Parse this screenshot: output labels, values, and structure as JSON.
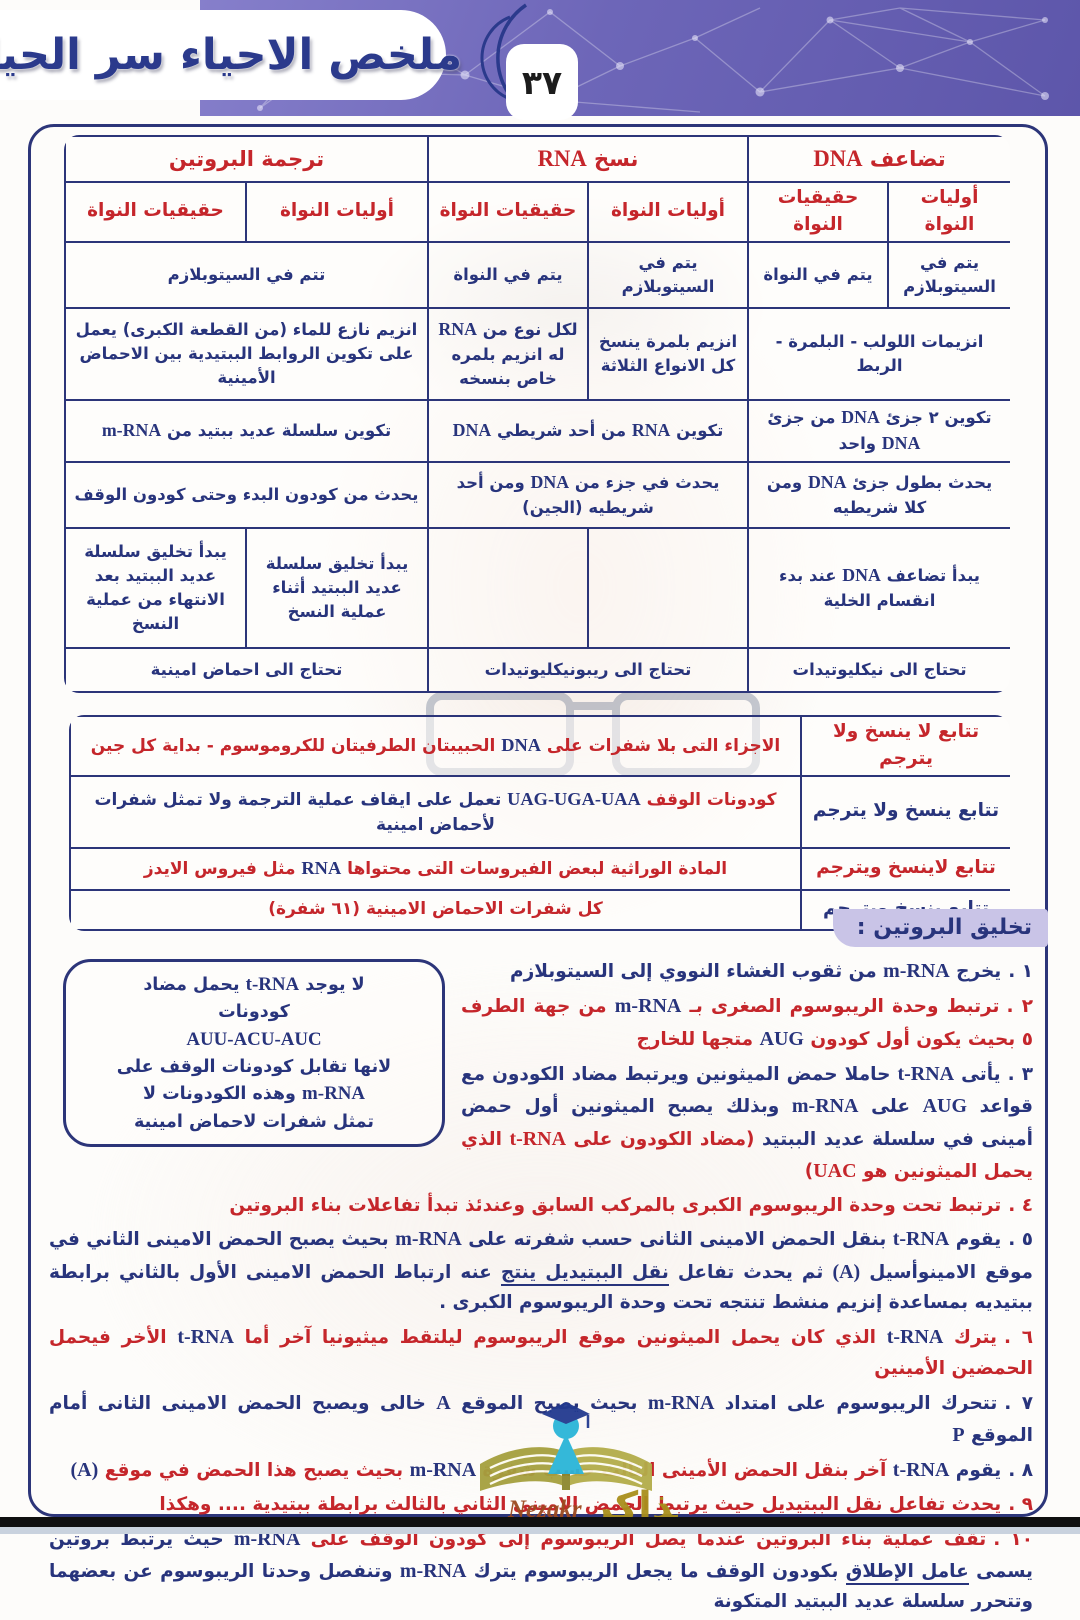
{
  "header": {
    "title": "ملخص الاحياء سر الحياة",
    "page_number": "٣٧"
  },
  "comparison_table": {
    "group_headers": {
      "dna": [
        {
          "t": "تضاعف ",
          "s": "r"
        },
        {
          "t": "DNA",
          "s": "rl"
        }
      ],
      "rna": [
        {
          "t": "نسخ ",
          "s": "r"
        },
        {
          "t": "RNA",
          "s": "rl"
        }
      ],
      "translation": [
        {
          "t": "ترجمة البروتين",
          "s": "r"
        }
      ]
    },
    "sub_headers": {
      "prokaryotes": [
        {
          "t": "أوليات النواة",
          "s": "r"
        }
      ],
      "eukaryotes": [
        {
          "t": "حقيقيات النواة",
          "s": "r"
        }
      ]
    },
    "rows": {
      "location": {
        "dna_prok": [
          {
            "t": "يتم في السيتوبلازم",
            "s": "n"
          }
        ],
        "dna_euk": [
          {
            "t": "يتم في النواة",
            "s": "n"
          }
        ],
        "rna_prok": [
          {
            "t": "يتم في السيتوبلازم",
            "s": "n"
          }
        ],
        "rna_euk": [
          {
            "t": "يتم في النواة",
            "s": "n"
          }
        ],
        "trans": [
          {
            "t": "تتم في السيتوبلازم",
            "s": "n"
          }
        ]
      },
      "enzymes": {
        "dna": [
          {
            "t": "انزيمات اللولب - البلمرة - الربط",
            "s": "n"
          }
        ],
        "rna_prok": [
          {
            "t": "انزيم بلمرة ينسخ كل الانواع الثلاثة",
            "s": "n"
          }
        ],
        "rna_euk": [
          {
            "t": "لكل نوع من ",
            "s": "n"
          },
          {
            "t": "RNA",
            "s": "nl"
          },
          {
            "t": " له انزيم بلمره خاص بنسخه",
            "s": "n"
          }
        ],
        "trans": [
          {
            "t": "انزيم نازع للماء (من القطعة الكبرى) يعمل على تكوين الروابط الببتيدية بين الاحماض الأمينية",
            "s": "n"
          }
        ]
      },
      "product": {
        "dna": [
          {
            "t": "تكوين ٢ جزئ ",
            "s": "n"
          },
          {
            "t": "DNA",
            "s": "nl"
          },
          {
            "t": " من جزئ ",
            "s": "n"
          },
          {
            "t": "DNA",
            "s": "nl"
          },
          {
            "t": " واحد",
            "s": "n"
          }
        ],
        "rna": [
          {
            "t": "تكوين ",
            "s": "n"
          },
          {
            "t": "RNA",
            "s": "nl"
          },
          {
            "t": " من أحد شريطي ",
            "s": "n"
          },
          {
            "t": "DNA",
            "s": "nl"
          }
        ],
        "trans": [
          {
            "t": "تكوين سلسلة عديد ببتيد من ",
            "s": "n"
          },
          {
            "t": "m-RNA",
            "s": "nl"
          }
        ]
      },
      "extent": {
        "dna": [
          {
            "t": "يحدث بطول جزئ ",
            "s": "n"
          },
          {
            "t": "DNA",
            "s": "nl"
          },
          {
            "t": " ومن كلا شريطيه",
            "s": "n"
          }
        ],
        "rna": [
          {
            "t": "يحدث في جزء من ",
            "s": "n"
          },
          {
            "t": "DNA",
            "s": "nl"
          },
          {
            "t": " ومن أحد شريطيه (الجين)",
            "s": "n"
          }
        ],
        "trans": [
          {
            "t": "يحدث من كودون البدء وحتى كودون الوقف",
            "s": "n"
          }
        ]
      },
      "timing": {
        "dna": [
          {
            "t": "يبدأ تضاعف ",
            "s": "n"
          },
          {
            "t": "DNA",
            "s": "nl"
          },
          {
            "t": " عند بدء انقسام الخلية",
            "s": "n"
          }
        ],
        "rna_prok": [],
        "rna_euk": [],
        "trans_prok": [
          {
            "t": "يبدأ تخليق سلسلة عديد الببتيد أثناء عملية النسخ",
            "s": "n"
          }
        ],
        "trans_euk": [
          {
            "t": "يبدأ تخليق سلسلة عديد الببتيد بعد الانتهاء من عملية النسخ",
            "s": "n"
          }
        ]
      },
      "needs": {
        "dna": [
          {
            "t": "تحتاج الى نيكليوتيدات",
            "s": "n"
          }
        ],
        "rna": [
          {
            "t": "تحتاج الى ريبونيكليوتيدات",
            "s": "n"
          }
        ],
        "trans": [
          {
            "t": "تحتاج الى احماض امينية",
            "s": "n"
          }
        ]
      }
    }
  },
  "sequence_table": {
    "rows": [
      {
        "label": [
          {
            "t": "تتابع لا ينسخ ولا يترجم",
            "s": "r"
          }
        ],
        "content": [
          {
            "t": "الاجزاء التى بلا شفرات على ",
            "s": "r"
          },
          {
            "t": "DNA",
            "s": "nl"
          },
          {
            "t": " الحبيبتان الطرفيتان للكروموسوم - بداية كل جين",
            "s": "r"
          }
        ]
      },
      {
        "label": [
          {
            "t": "تتابع ينسخ ولا يترجم",
            "s": "n"
          }
        ],
        "content": [
          {
            "t": "كودونات الوقف ",
            "s": "r"
          },
          {
            "t": "UAG-UGA-UAA",
            "s": "nl"
          },
          {
            "t": " تعمل على ايقاف عملية الترجمة ولا تمثل شفرات لأحماض امينية",
            "s": "n"
          }
        ]
      },
      {
        "label": [
          {
            "t": "تتابع لاينسخ ويترجم",
            "s": "r"
          }
        ],
        "content": [
          {
            "t": "المادة الوراثية لبعض الفيروسات التى محتواها ",
            "s": "r"
          },
          {
            "t": "RNA",
            "s": "nl"
          },
          {
            "t": " مثل فيروس الايدز",
            "s": "r"
          }
        ]
      },
      {
        "label": [
          {
            "t": "تتابع ينسخ ويترجم",
            "s": "n"
          }
        ],
        "content": [
          {
            "t": "كل شفرات الاحماض الامينية (٦١ شفرة)",
            "s": "r"
          }
        ]
      }
    ]
  },
  "protein": {
    "heading": "تخليق البروتين :",
    "side_box": {
      "lines": [
        [
          {
            "t": "لا يوجد ",
            "s": "n"
          },
          {
            "t": "t-RNA",
            "s": "nl"
          },
          {
            "t": " يحمل مضاد",
            "s": "n"
          }
        ],
        [
          {
            "t": "كودونات",
            "s": "n"
          }
        ],
        [
          {
            "t": "AUU-ACU-AUC",
            "s": "nl"
          }
        ],
        [
          {
            "t": "لانها تقابل كودونات الوقف على",
            "s": "n"
          }
        ],
        [
          {
            "t": "m-RNA",
            "s": "nl"
          },
          {
            "t": " وهذه الكودونات لا",
            "s": "n"
          }
        ],
        [
          {
            "t": "تمثل شفرات لاحماض امينية",
            "s": "n"
          }
        ]
      ]
    },
    "steps": [
      {
        "num": [
          {
            "t": "١ .",
            "s": "n"
          }
        ],
        "segments": [
          {
            "t": "يخرج ",
            "s": "n"
          },
          {
            "t": "m-RNA",
            "s": "nl"
          },
          {
            "t": " من ثقوب الغشاء النووي إلى السيتوبلازم",
            "s": "n"
          }
        ]
      },
      {
        "num": [
          {
            "t": "٢ .",
            "s": "r"
          }
        ],
        "segments": [
          {
            "t": "ترتبط وحدة الريبوسوم الصغرى بـ ",
            "s": "r"
          },
          {
            "t": "m-RNA",
            "s": "nl"
          },
          {
            "t": " من جهة الطرف ٥ بحيث يكون أول كودون ",
            "s": "r"
          },
          {
            "t": "AUG",
            "s": "nl"
          },
          {
            "t": " متجها للخارج",
            "s": "r"
          }
        ]
      },
      {
        "num": [
          {
            "t": "٣ .",
            "s": "n"
          }
        ],
        "segments": [
          {
            "t": "يأتى ",
            "s": "n"
          },
          {
            "t": "t-RNA",
            "s": "nl"
          },
          {
            "t": " حاملا حمض الميثونين ويرتبط مضاد الكودون مع قواعد ",
            "s": "n"
          },
          {
            "t": "AUG",
            "s": "nl"
          },
          {
            "t": " على ",
            "s": "n"
          },
          {
            "t": "m-RNA",
            "s": "nl"
          },
          {
            "t": " وبذلك يصبح الميثونين أول حمض أمينى في سلسلة عديد الببتيد ",
            "s": "n"
          },
          {
            "t": "(مضاد الكودون على ",
            "s": "r"
          },
          {
            "t": "t-RNA",
            "s": "rl"
          },
          {
            "t": " الذي يحمل الميثونين هو ",
            "s": "r"
          },
          {
            "t": "UAC",
            "s": "rl"
          },
          {
            "t": ")",
            "s": "r"
          }
        ]
      },
      {
        "num": [
          {
            "t": "٤ .",
            "s": "r"
          }
        ],
        "segments": [
          {
            "t": "ترتبط تحت وحدة الريبوسوم الكبرى بالمركب السابق وعندئذ تبدأ تفاعلات بناء البروتين",
            "s": "r"
          }
        ]
      },
      {
        "num": [
          {
            "t": "٥ .",
            "s": "n"
          }
        ],
        "segments": [
          {
            "t": "يقوم ",
            "s": "n"
          },
          {
            "t": "t-RNA",
            "s": "nl"
          },
          {
            "t": " بنقل الحمض الامينى الثانى حسب شفرته على ",
            "s": "n"
          },
          {
            "t": "m-RNA",
            "s": "nl"
          },
          {
            "t": " بحيث يصبح الحمض الامينى الثاني في موقع الامينوأسيل ",
            "s": "n"
          },
          {
            "t": "(A)",
            "s": "nl"
          },
          {
            "t": " ثم يحدث تفاعل ",
            "s": "n"
          },
          {
            "t": "نقل الببتيديل ينتج",
            "s": "nu"
          },
          {
            "t": " عنه ارتباط الحمض الامينى الأول بالثاني برابطة ببتيديه بمساعدة إنزيم منشط تنتجه تحت وحدة الريبوسوم الكبرى .",
            "s": "n"
          }
        ]
      },
      {
        "num": [
          {
            "t": "٦ .",
            "s": "r"
          }
        ],
        "segments": [
          {
            "t": "يترك ",
            "s": "r"
          },
          {
            "t": "t-RNA",
            "s": "nl"
          },
          {
            "t": " الذي كان يحمل الميثونين موقع الريبوسوم ليلتقط ميثيونيا آخر أما ",
            "s": "r"
          },
          {
            "t": "t-RNA",
            "s": "nl"
          },
          {
            "t": " الأخر فيحمل الحمضين الأمينين",
            "s": "r"
          }
        ]
      },
      {
        "num": [
          {
            "t": "٧ .",
            "s": "n"
          }
        ],
        "segments": [
          {
            "t": "تتحرك الريبوسوم على امتداد ",
            "s": "n"
          },
          {
            "t": "m-RNA",
            "s": "nl"
          },
          {
            "t": " بحيث يصبح الموقع ",
            "s": "n"
          },
          {
            "t": "A",
            "s": "nl"
          },
          {
            "t": " خالى ويصبح الحمض الامينى الثانى أمام الموقع ",
            "s": "n"
          },
          {
            "t": "P",
            "s": "nl"
          }
        ]
      },
      {
        "num": [
          {
            "t": "٨ .",
            "s": "n"
          }
        ],
        "segments": [
          {
            "t": "يقوم ",
            "s": "n"
          },
          {
            "t": "t-RNA",
            "s": "nl"
          },
          {
            "t": " آخر بنقل الحمض الأمينى الثالث حسب شفرة ",
            "s": "r"
          },
          {
            "t": "m-RNA",
            "s": "nl"
          },
          {
            "t": " بحيث يصبح هذا الحمض في موقع ",
            "s": "r"
          },
          {
            "t": "(A)",
            "s": "nl"
          }
        ]
      },
      {
        "num": [
          {
            "t": "٩ .",
            "s": "r"
          }
        ],
        "segments": [
          {
            "t": "يحدث تفاعل نقل الببتيديل حيث يرتبط الحمض الامينى الثاني بالثالث برابطة ببتيدية .... وهكذا",
            "s": "r"
          }
        ]
      },
      {
        "num": [
          {
            "t": "١٠ .",
            "s": "r"
          }
        ],
        "segments": [
          {
            "t": "تقف عملية بناء البروتين عندما يصل الريبوسوم إلى كودون الوقف على ",
            "s": "r"
          },
          {
            "t": "m-RNA",
            "s": "nl"
          },
          {
            "t": " حيث يرتبط بروتين يسمى ",
            "s": "n"
          },
          {
            "t": "عامل الإطلاق",
            "s": "nu"
          },
          {
            "t": " بكودون الوقف ما يجعل الريبوسوم يترك ",
            "s": "n"
          },
          {
            "t": "m-RNA",
            "s": "nl"
          },
          {
            "t": " وتنفصل وحدتا الريبوسوم عن بعضهما وتتحرر سلسلة عديد الببتيد المتكونة",
            "s": "n"
          }
        ]
      }
    ]
  },
  "watermark": {
    "arabic": "نذاكر",
    "latin": "Nezakr"
  }
}
